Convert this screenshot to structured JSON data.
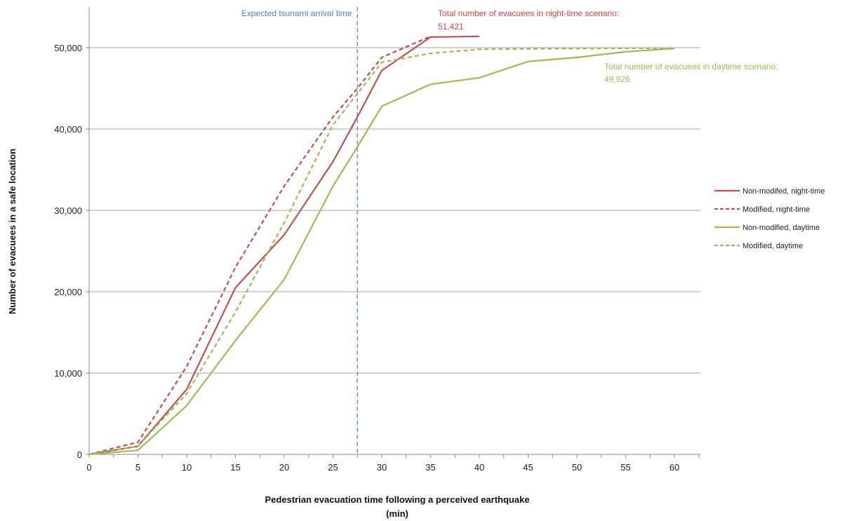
{
  "chart_data": {
    "type": "line",
    "xlabel_line1": "Pedestrian evacuation time following a perceived earthquake",
    "xlabel_line2": "(min)",
    "ylabel": "Number of evacuees in a safe location",
    "xlim": [
      0,
      62
    ],
    "ylim": [
      0,
      55000
    ],
    "x_ticks": [
      0,
      5,
      10,
      15,
      20,
      25,
      30,
      35,
      40,
      45,
      50,
      55,
      60
    ],
    "x_tick_labels": [
      "0",
      "5",
      "10",
      "15",
      "20",
      "25",
      "30",
      "35",
      "40",
      "45",
      "50",
      "55",
      "60"
    ],
    "y_ticks": [
      0,
      10000,
      20000,
      30000,
      40000,
      50000
    ],
    "y_tick_labels": [
      "0",
      "10,000",
      "20,000",
      "30,000",
      "40,000",
      "50,000"
    ],
    "grid": "horizontal",
    "legend_position": "right",
    "series": [
      {
        "name": "Non-modifed, night-time",
        "color": "#c0504d",
        "dash": "solid",
        "x": [
          0,
          5,
          10,
          15,
          20,
          25,
          27.5,
          30,
          35,
          40
        ],
        "y": [
          0,
          1000,
          8000,
          20500,
          27000,
          36000,
          41500,
          47200,
          51300,
          51400
        ]
      },
      {
        "name": "Modified, night-time",
        "color": "#c0504d",
        "dash": "dashed",
        "x": [
          0,
          5,
          10,
          15,
          20,
          25,
          27.5,
          30,
          35
        ],
        "y": [
          0,
          1500,
          10800,
          23000,
          33000,
          41500,
          45000,
          48800,
          51400
        ]
      },
      {
        "name": "Non-modified, daytime",
        "color": "#9bbb59",
        "dash": "solid",
        "x": [
          0,
          5,
          10,
          15,
          20,
          25,
          27.5,
          30,
          35,
          40,
          45,
          50,
          55,
          60
        ],
        "y": [
          0,
          500,
          6000,
          14000,
          21500,
          33000,
          37800,
          42800,
          45500,
          46300,
          48300,
          48800,
          49500,
          49900
        ]
      },
      {
        "name": "Modified, daytime",
        "color": "#9bbb59",
        "dash": "dashed",
        "x": [
          0,
          5,
          10,
          15,
          20,
          25,
          30,
          35,
          40,
          45,
          50,
          55,
          60
        ],
        "y": [
          0,
          1000,
          7500,
          17500,
          28500,
          40500,
          48200,
          49300,
          49800,
          49850,
          49900,
          49920,
          49926
        ]
      }
    ],
    "vertical_line": {
      "x": 27.5,
      "label": "Expected tsunami arrival time",
      "color": "#4f81bd"
    },
    "annotations": [
      {
        "line1": "Total number of evacuees in night-time scenario:",
        "line2": "51,421",
        "color": "#d9413c"
      },
      {
        "line1": "Total number of evacuees in daytime scenario:",
        "line2": "49,926",
        "color": "#9bbb59"
      }
    ]
  }
}
